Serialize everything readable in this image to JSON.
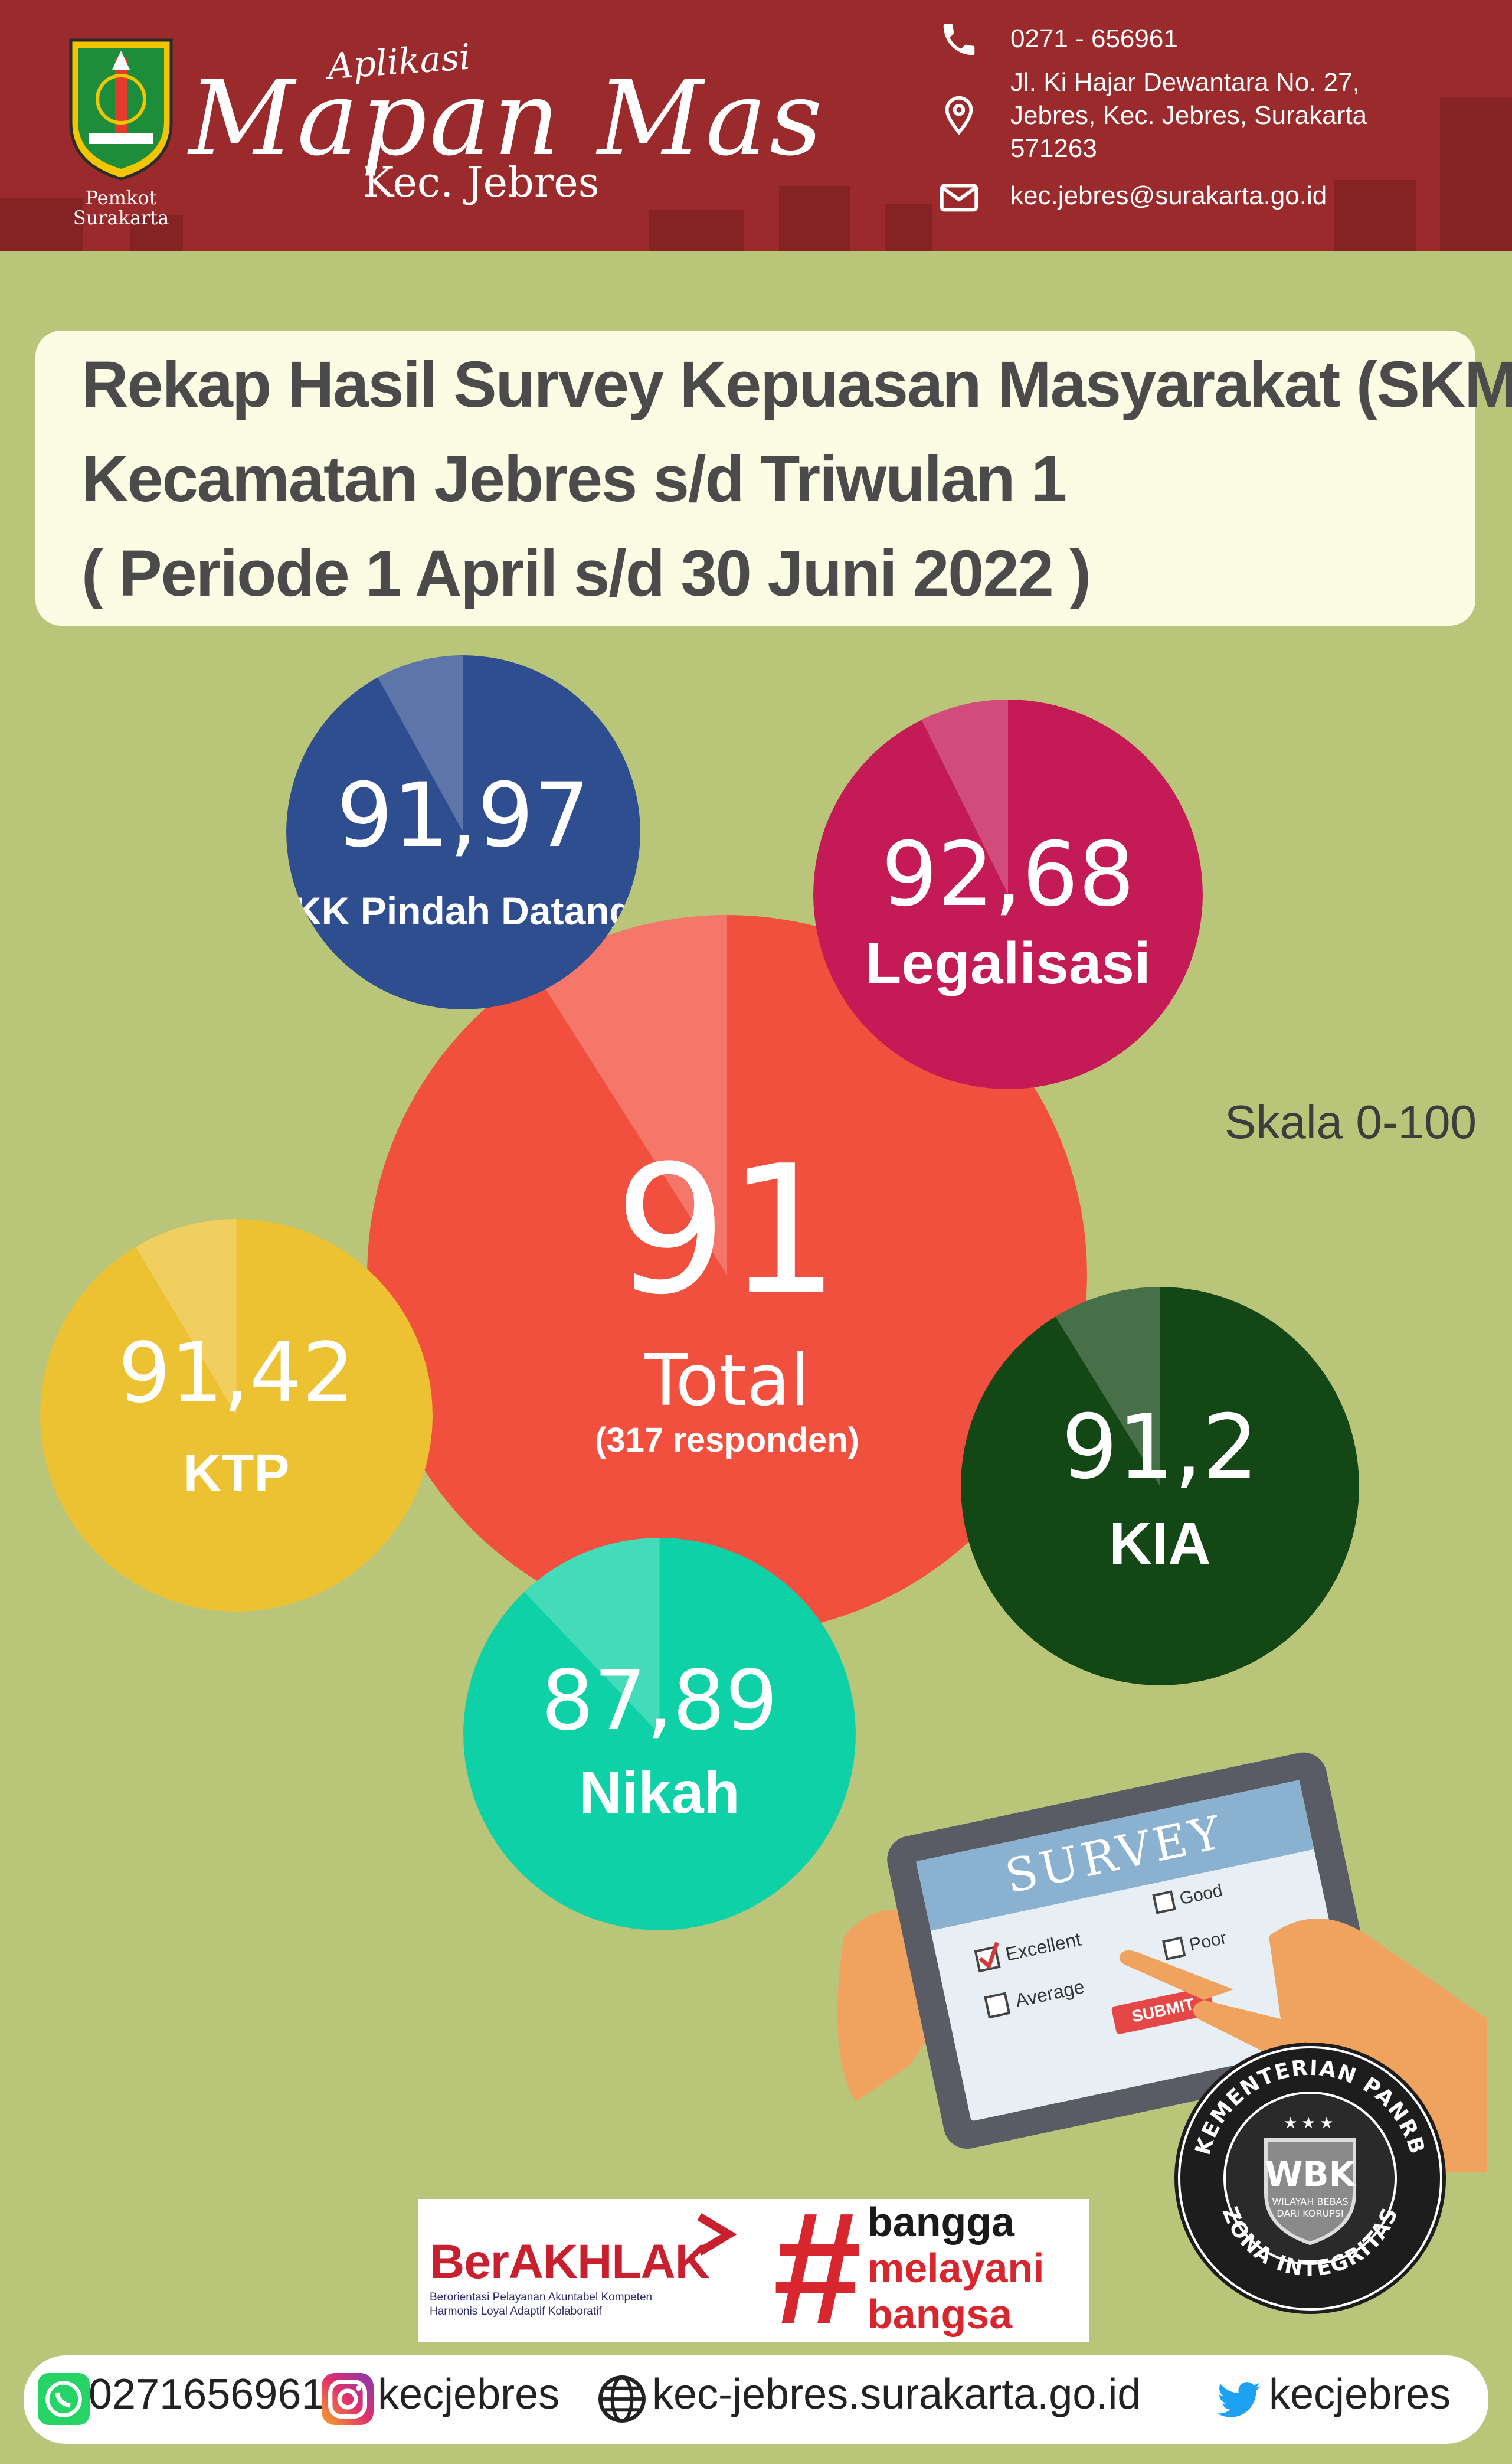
{
  "header": {
    "crest_label": [
      "Pemkot",
      "Surakarta"
    ],
    "app_kicker": "Aplikasi",
    "app_name": "Mapan Mas",
    "app_sub": "Kec. Jebres",
    "phone": "0271 - 656961",
    "address": [
      "Jl. Ki Hajar Dewantara No. 27,",
      "Jebres, Kec. Jebres, Surakarta",
      "571263"
    ],
    "email": "kec.jebres@surakarta.go.id"
  },
  "title": {
    "line1": "Rekap Hasil Survey Kepuasan Masyarakat (SKM)",
    "line2": "Kecamatan Jebres s/d Triwulan 1",
    "line3": "( Periode 1 April s/d 30 Juni 2022 )"
  },
  "scores": {
    "total": {
      "value": "91",
      "label": "Total",
      "note": "(317 responden)",
      "score": 91,
      "color": "#f2503f"
    },
    "kk": {
      "value": "91,97",
      "label": "KK Pindah Datang",
      "score": 91.97,
      "color": "#2f4e8f"
    },
    "legalisasi": {
      "value": "92,68",
      "label": "Legalisasi",
      "score": 92.68,
      "color": "#c41a56"
    },
    "ktp": {
      "value": "91,42",
      "label": "KTP",
      "score": 91.42,
      "color": "#ecc232"
    },
    "kia": {
      "value": "91,2",
      "label": "KIA",
      "score": 91.2,
      "color": "#134715"
    },
    "nikah": {
      "value": "87,89",
      "label": "Nikah",
      "score": 87.89,
      "color": "#0fd1a8"
    }
  },
  "scale": "Skala 0-100",
  "tablet": {
    "heading": "SURVEY",
    "options": [
      "Excellent",
      "Good",
      "Average",
      "Poor"
    ],
    "submit": "SUBMIT"
  },
  "badge": {
    "ring_top": "KEMENTERIAN PANRB",
    "ring_bottom": "ZONA INTEGRITAS",
    "shield": "WBK",
    "shield_sub": [
      "WILAYAH BEBAS",
      "DARI KORUPSI"
    ]
  },
  "logos": {
    "berakhlak": "BerAKHLAK",
    "berakhlak_sub": [
      "Berorientasi Pelayanan Akuntabel Kompeten",
      "Harmonis Loyal Adaptif Kolaboratif"
    ],
    "bangga": [
      "bangga",
      "melayani",
      "bangsa"
    ],
    "hash": "#"
  },
  "footer": {
    "whatsapp": "0271656961",
    "instagram": "kecjebres",
    "website": "kec-jebres.surakarta.go.id",
    "twitter": "kecjebres"
  },
  "icons": [
    "phone-icon",
    "location-icon",
    "mail-icon",
    "whatsapp-icon",
    "instagram-icon",
    "globe-icon",
    "twitter-icon"
  ]
}
